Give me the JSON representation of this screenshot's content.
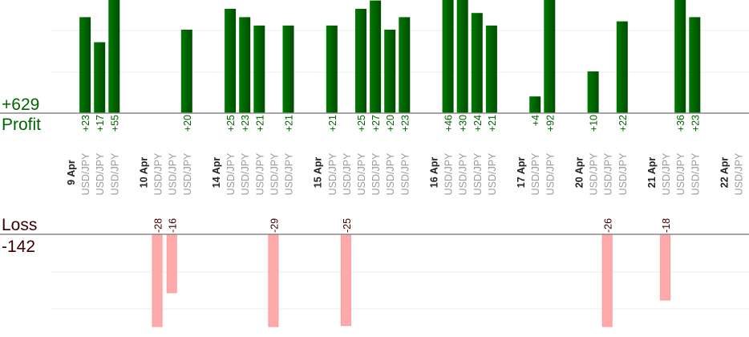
{
  "chart_data": {
    "type": "bar",
    "profit": {
      "title": "Profit",
      "total": "+629",
      "color": "#006400"
    },
    "loss": {
      "title": "Loss",
      "total": "-142",
      "color": "#ffaaaa",
      "text_color": "#3a0000"
    },
    "groups": [
      {
        "date": "9 Apr",
        "trades": [
          {
            "symbol": "USD/JPY",
            "value": 23
          },
          {
            "symbol": "USD/JPY",
            "value": 17
          },
          {
            "symbol": "USD/JPY",
            "value": 55
          }
        ]
      },
      {
        "date": "10 Apr",
        "trades": [
          {
            "symbol": "USD/JPY",
            "value": -28
          },
          {
            "symbol": "USD/JPY",
            "value": -16
          },
          {
            "symbol": "USD/JPY",
            "value": 20
          }
        ]
      },
      {
        "date": "14 Apr",
        "trades": [
          {
            "symbol": "USD/JPY",
            "value": 25
          },
          {
            "symbol": "USD/JPY",
            "value": 23
          },
          {
            "symbol": "USD/JPY",
            "value": 21
          },
          {
            "symbol": "USD/JPY",
            "value": -29
          },
          {
            "symbol": "USD/JPY",
            "value": 21
          }
        ]
      },
      {
        "date": "15 Apr",
        "trades": [
          {
            "symbol": "USD/JPY",
            "value": 21
          },
          {
            "symbol": "USD/JPY",
            "value": -25
          },
          {
            "symbol": "USD/JPY",
            "value": 25
          },
          {
            "symbol": "USD/JPY",
            "value": 27
          },
          {
            "symbol": "USD/JPY",
            "value": 20
          },
          {
            "symbol": "USD/JPY",
            "value": 23
          }
        ]
      },
      {
        "date": "16 Apr",
        "trades": [
          {
            "symbol": "USD/JPY",
            "value": 46
          },
          {
            "symbol": "USD/JPY",
            "value": 30
          },
          {
            "symbol": "USD/JPY",
            "value": 24
          },
          {
            "symbol": "USD/JPY",
            "value": 21
          }
        ]
      },
      {
        "date": "17 Apr",
        "trades": [
          {
            "symbol": "USD/JPY",
            "value": 4
          },
          {
            "symbol": "USD/JPY",
            "value": 92
          }
        ]
      },
      {
        "date": "20 Apr",
        "trades": [
          {
            "symbol": "USD/JPY",
            "value": 10
          },
          {
            "symbol": "USD/JPY",
            "value": -26
          },
          {
            "symbol": "USD/JPY",
            "value": 22
          }
        ]
      },
      {
        "date": "21 Apr",
        "trades": [
          {
            "symbol": "USD/JPY",
            "value": -18
          },
          {
            "symbol": "USD/JPY",
            "value": 36
          },
          {
            "symbol": "USD/JPY",
            "value": 23
          }
        ]
      },
      {
        "date": "22 Apr",
        "trades": [
          {
            "symbol": "USD/JPY",
            "value": null
          }
        ]
      }
    ],
    "grid": true
  }
}
